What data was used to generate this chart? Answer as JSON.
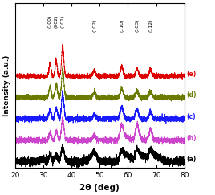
{
  "xlim": [
    20,
    80
  ],
  "xlabel": "2θ (deg)",
  "ylabel": "Intensity (a.u.)",
  "xticks": [
    20,
    30,
    40,
    50,
    60,
    70,
    80
  ],
  "peak_labels": [
    "(100)",
    "(002)",
    "(101)",
    "(102)",
    "(110)",
    "(103)",
    "(112)"
  ],
  "peak_angles": [
    32.4,
    34.6,
    36.9,
    48.1,
    57.8,
    63.2,
    68.0
  ],
  "series_labels": [
    "(a)",
    "(b)",
    "(c)",
    "(d)",
    "(e)"
  ],
  "series_colors": [
    "black",
    "#cc44cc",
    "#1a1aff",
    "#6b7a00",
    "#dd0000"
  ],
  "offsets": [
    0.0,
    0.2,
    0.4,
    0.6,
    0.8
  ],
  "noise_scale": 0.01
}
